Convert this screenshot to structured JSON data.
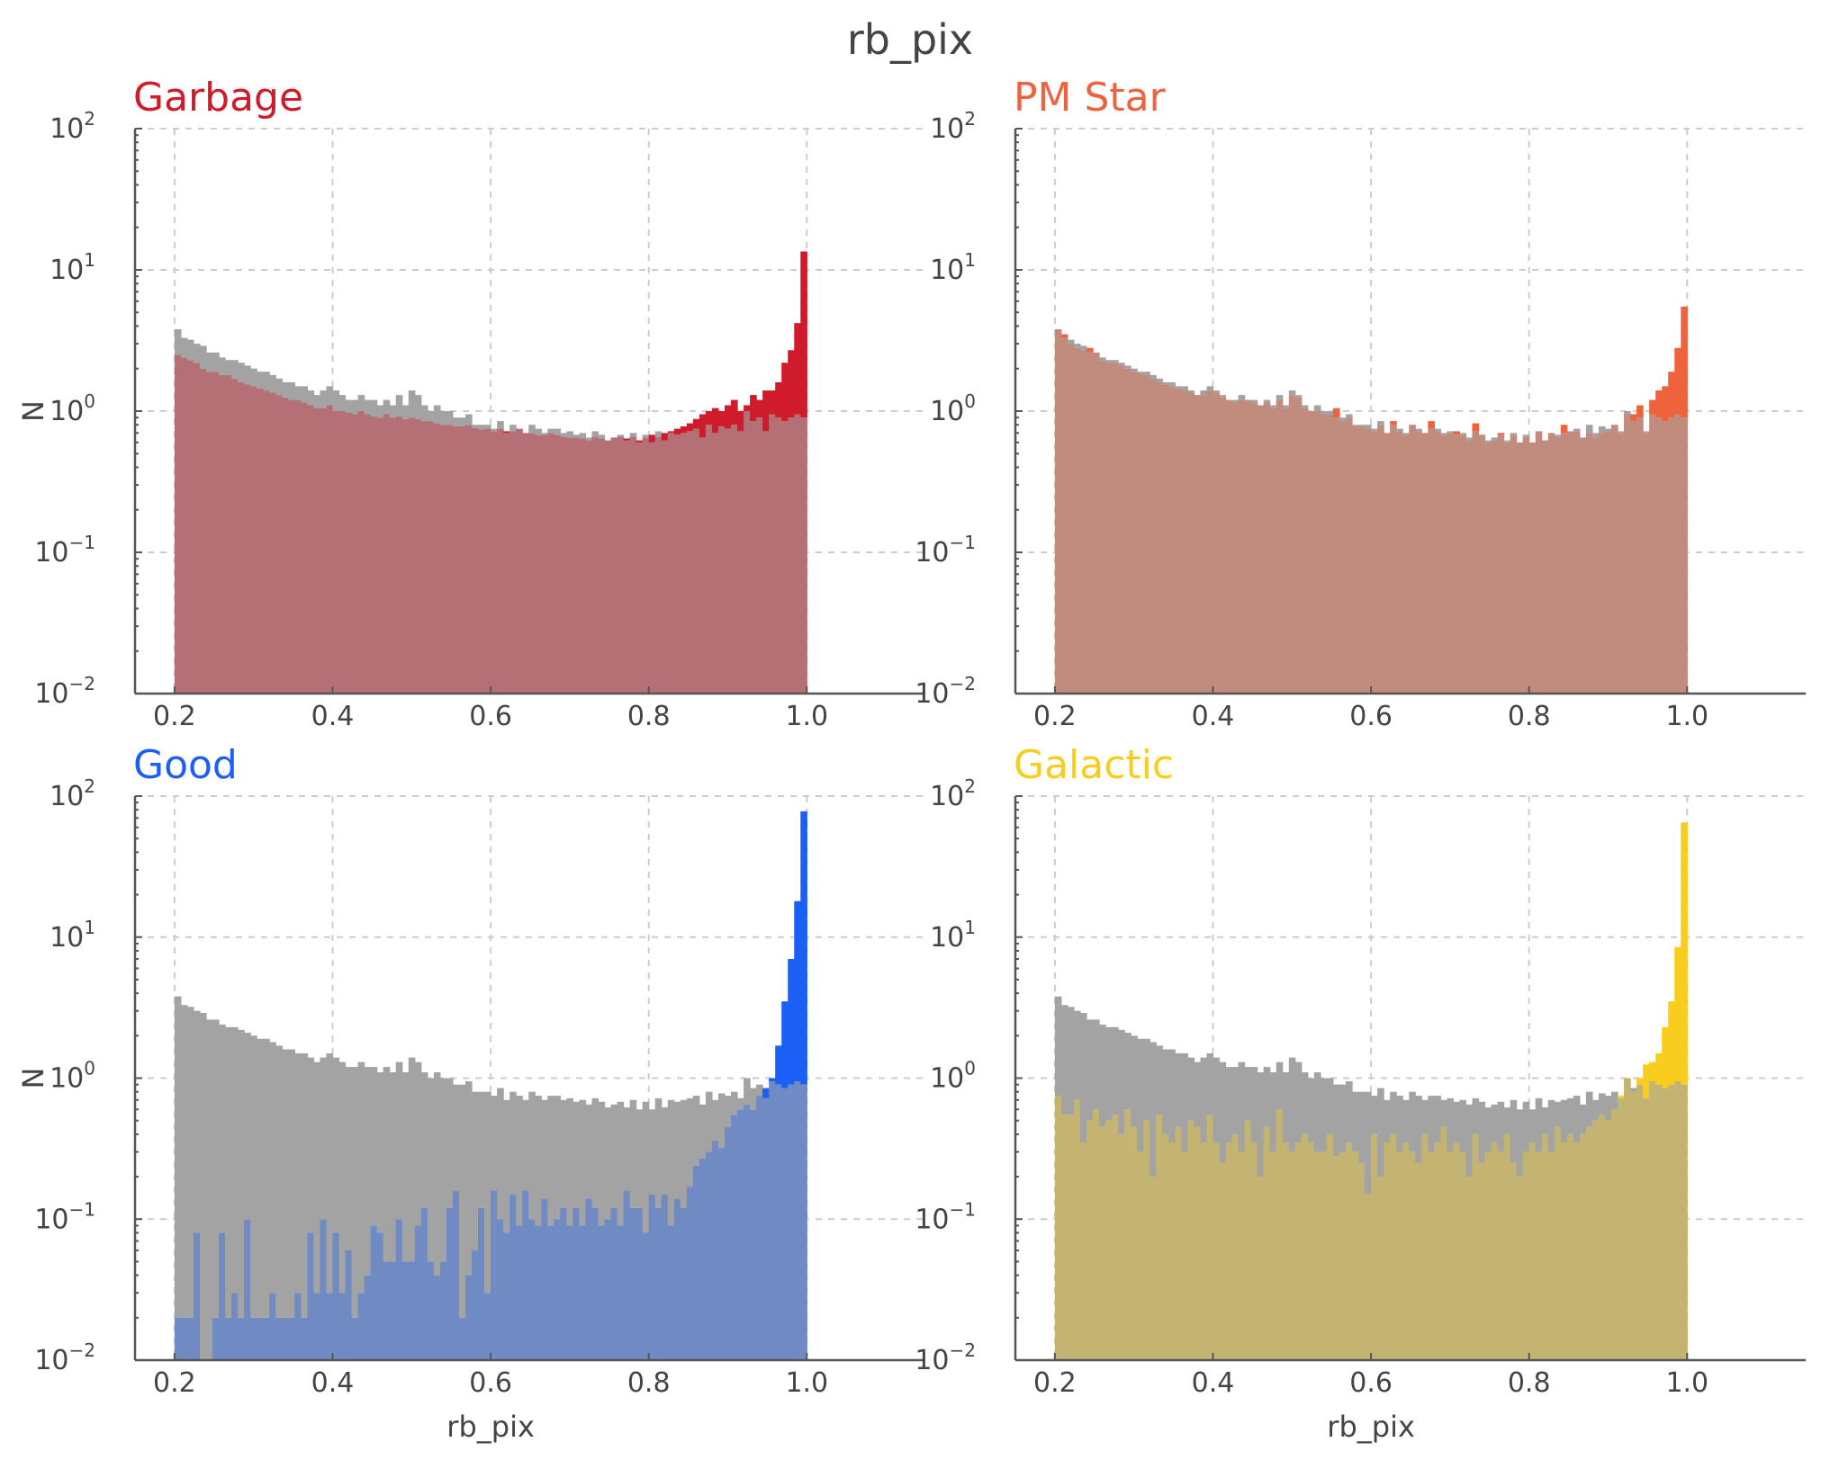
{
  "chart_data": {
    "type": "histogram",
    "suptitle": "rb_pix",
    "x_edges": [
      0.2,
      0.208,
      0.216,
      0.224,
      0.232,
      0.24,
      0.248,
      0.256,
      0.264,
      0.272,
      0.28,
      0.288,
      0.296,
      0.304,
      0.312,
      0.32,
      0.328,
      0.336,
      0.344,
      0.352,
      0.36,
      0.368,
      0.376,
      0.384,
      0.392,
      0.4,
      0.408,
      0.416,
      0.424,
      0.432,
      0.44,
      0.448,
      0.456,
      0.464,
      0.472,
      0.48,
      0.488,
      0.496,
      0.504,
      0.512,
      0.52,
      0.528,
      0.536,
      0.544,
      0.552,
      0.56,
      0.568,
      0.576,
      0.584,
      0.592,
      0.6,
      0.608,
      0.616,
      0.624,
      0.632,
      0.64,
      0.648,
      0.656,
      0.664,
      0.672,
      0.68,
      0.688,
      0.696,
      0.704,
      0.712,
      0.72,
      0.728,
      0.736,
      0.744,
      0.752,
      0.76,
      0.768,
      0.776,
      0.784,
      0.792,
      0.8,
      0.808,
      0.816,
      0.824,
      0.832,
      0.84,
      0.848,
      0.856,
      0.864,
      0.872,
      0.88,
      0.888,
      0.896,
      0.904,
      0.912,
      0.92,
      0.928,
      0.936,
      0.944,
      0.952,
      0.96,
      0.968,
      0.976,
      0.984,
      0.992,
      1.0
    ],
    "background": {
      "name": "All",
      "color": "#999999",
      "values": [
        3.8,
        3.3,
        3.2,
        3.0,
        2.9,
        2.6,
        2.6,
        2.4,
        2.3,
        2.3,
        2.2,
        2.1,
        2.0,
        1.9,
        1.9,
        1.8,
        1.7,
        1.6,
        1.6,
        1.5,
        1.5,
        1.4,
        1.3,
        1.4,
        1.5,
        1.4,
        1.3,
        1.2,
        1.2,
        1.3,
        1.2,
        1.2,
        1.1,
        1.2,
        1.1,
        1.3,
        1.1,
        1.4,
        1.3,
        1.1,
        1.0,
        1.1,
        1.0,
        1.0,
        0.9,
        0.9,
        0.95,
        0.8,
        0.8,
        0.8,
        0.75,
        0.85,
        0.7,
        0.8,
        0.75,
        0.7,
        0.8,
        0.75,
        0.7,
        0.75,
        0.75,
        0.7,
        0.72,
        0.68,
        0.7,
        0.65,
        0.72,
        0.68,
        0.62,
        0.65,
        0.68,
        0.62,
        0.7,
        0.6,
        0.68,
        0.6,
        0.72,
        0.62,
        0.7,
        0.68,
        0.7,
        0.72,
        0.75,
        0.65,
        0.8,
        0.7,
        0.78,
        0.75,
        0.8,
        0.72,
        1.0,
        0.85,
        0.9,
        0.72,
        0.95,
        0.9,
        0.85,
        0.9,
        0.95,
        0.9
      ]
    },
    "panels": [
      {
        "title": "Garbage",
        "color": "#d01c2a",
        "xlabel": "",
        "ylabel": "N",
        "values": [
          2.5,
          2.4,
          2.3,
          2.2,
          2.0,
          1.9,
          1.9,
          1.8,
          1.8,
          1.7,
          1.6,
          1.55,
          1.5,
          1.45,
          1.4,
          1.35,
          1.3,
          1.25,
          1.2,
          1.2,
          1.15,
          1.1,
          1.05,
          1.05,
          1.1,
          1.0,
          1.0,
          0.98,
          0.95,
          1.0,
          0.95,
          0.92,
          0.9,
          0.95,
          0.9,
          0.92,
          0.88,
          0.9,
          0.88,
          0.85,
          0.85,
          0.82,
          0.8,
          0.8,
          0.78,
          0.78,
          0.8,
          0.76,
          0.74,
          0.75,
          0.72,
          0.75,
          0.72,
          0.72,
          0.75,
          0.7,
          0.7,
          0.68,
          0.68,
          0.7,
          0.68,
          0.66,
          0.65,
          0.65,
          0.64,
          0.62,
          0.66,
          0.64,
          0.62,
          0.65,
          0.66,
          0.64,
          0.66,
          0.62,
          0.65,
          0.68,
          0.66,
          0.7,
          0.72,
          0.75,
          0.78,
          0.82,
          0.88,
          0.95,
          1.0,
          1.05,
          1.0,
          1.1,
          1.2,
          1.0,
          1.1,
          1.3,
          1.2,
          1.4,
          1.4,
          1.6,
          2.2,
          2.7,
          4.2,
          13.5
        ]
      },
      {
        "title": "PM Star",
        "color": "#ef623e",
        "xlabel": "",
        "ylabel": "",
        "values": [
          3.8,
          3.5,
          3.0,
          2.8,
          2.7,
          2.8,
          2.6,
          2.3,
          2.2,
          2.2,
          2.1,
          2.0,
          1.9,
          1.85,
          1.8,
          1.7,
          1.6,
          1.55,
          1.5,
          1.45,
          1.4,
          1.35,
          1.3,
          1.3,
          1.4,
          1.35,
          1.25,
          1.2,
          1.15,
          1.2,
          1.2,
          1.15,
          1.1,
          1.15,
          1.05,
          1.2,
          1.05,
          1.3,
          1.25,
          1.05,
          1.0,
          1.0,
          0.95,
          0.95,
          1.05,
          0.85,
          0.9,
          0.78,
          0.78,
          0.75,
          0.72,
          0.8,
          0.7,
          0.85,
          0.72,
          0.68,
          0.8,
          0.72,
          0.7,
          0.85,
          0.72,
          0.68,
          0.7,
          0.72,
          0.68,
          0.62,
          0.82,
          0.68,
          0.6,
          0.62,
          0.7,
          0.6,
          0.68,
          0.6,
          0.66,
          0.6,
          0.72,
          0.62,
          0.7,
          0.66,
          0.8,
          0.72,
          0.72,
          0.65,
          0.7,
          0.65,
          0.7,
          0.72,
          0.8,
          0.7,
          0.95,
          0.95,
          1.1,
          0.7,
          1.2,
          1.4,
          1.5,
          1.9,
          2.8,
          5.5
        ]
      },
      {
        "title": "Good",
        "color": "#1c5ff7",
        "xlabel": "rb_pix",
        "ylabel": "N",
        "values": [
          0.02,
          0.02,
          0.02,
          0.08,
          0.01,
          0.01,
          0.02,
          0.08,
          0.02,
          0.03,
          0.02,
          0.1,
          0.02,
          0.02,
          0.02,
          0.03,
          0.02,
          0.02,
          0.02,
          0.03,
          0.02,
          0.08,
          0.03,
          0.1,
          0.03,
          0.08,
          0.03,
          0.06,
          0.02,
          0.03,
          0.04,
          0.09,
          0.08,
          0.05,
          0.05,
          0.1,
          0.05,
          0.05,
          0.09,
          0.12,
          0.05,
          0.04,
          0.05,
          0.12,
          0.16,
          0.02,
          0.04,
          0.06,
          0.12,
          0.03,
          0.16,
          0.1,
          0.08,
          0.15,
          0.09,
          0.16,
          0.1,
          0.09,
          0.14,
          0.09,
          0.1,
          0.12,
          0.09,
          0.12,
          0.09,
          0.14,
          0.12,
          0.09,
          0.1,
          0.12,
          0.09,
          0.16,
          0.12,
          0.12,
          0.08,
          0.15,
          0.12,
          0.15,
          0.09,
          0.14,
          0.12,
          0.17,
          0.24,
          0.27,
          0.3,
          0.36,
          0.32,
          0.45,
          0.55,
          0.6,
          0.65,
          0.6,
          0.75,
          0.85,
          1.0,
          1.7,
          3.5,
          7.0,
          18.0,
          78.0
        ]
      },
      {
        "title": "Galactic",
        "color": "#f8cd1e",
        "xlabel": "rb_pix",
        "ylabel": "",
        "values": [
          0.75,
          0.55,
          0.55,
          0.7,
          0.35,
          0.5,
          0.6,
          0.45,
          0.5,
          0.55,
          0.4,
          0.6,
          0.45,
          0.3,
          0.5,
          0.2,
          0.55,
          0.4,
          0.35,
          0.45,
          0.3,
          0.5,
          0.45,
          0.35,
          0.55,
          0.35,
          0.25,
          0.35,
          0.4,
          0.3,
          0.5,
          0.35,
          0.2,
          0.45,
          0.3,
          0.6,
          0.35,
          0.3,
          0.35,
          0.4,
          0.35,
          0.3,
          0.3,
          0.4,
          0.28,
          0.3,
          0.35,
          0.3,
          0.25,
          0.15,
          0.4,
          0.2,
          0.35,
          0.4,
          0.3,
          0.35,
          0.3,
          0.25,
          0.4,
          0.3,
          0.35,
          0.45,
          0.3,
          0.35,
          0.3,
          0.2,
          0.4,
          0.25,
          0.3,
          0.35,
          0.3,
          0.4,
          0.25,
          0.2,
          0.3,
          0.35,
          0.3,
          0.4,
          0.3,
          0.45,
          0.35,
          0.4,
          0.35,
          0.4,
          0.45,
          0.5,
          0.55,
          0.5,
          0.6,
          0.75,
          1.0,
          0.8,
          1.0,
          1.25,
          1.3,
          1.5,
          2.3,
          3.5,
          8.5,
          65.0
        ]
      }
    ],
    "xlim": [
      0.15,
      1.15
    ],
    "ylim": [
      0.01,
      100
    ],
    "xscale": "linear",
    "yscale": "log",
    "grid": true,
    "xticks": [
      0.2,
      0.4,
      0.6,
      0.8,
      1.0
    ],
    "xtick_labels": [
      "0.2",
      "0.4",
      "0.6",
      "0.8",
      "1.0"
    ],
    "yticks": [
      0.01,
      0.1,
      1,
      10,
      100
    ],
    "ytick_base": "10",
    "ytick_exponents": [
      "−2",
      "−1",
      "0",
      "1",
      "2"
    ]
  }
}
